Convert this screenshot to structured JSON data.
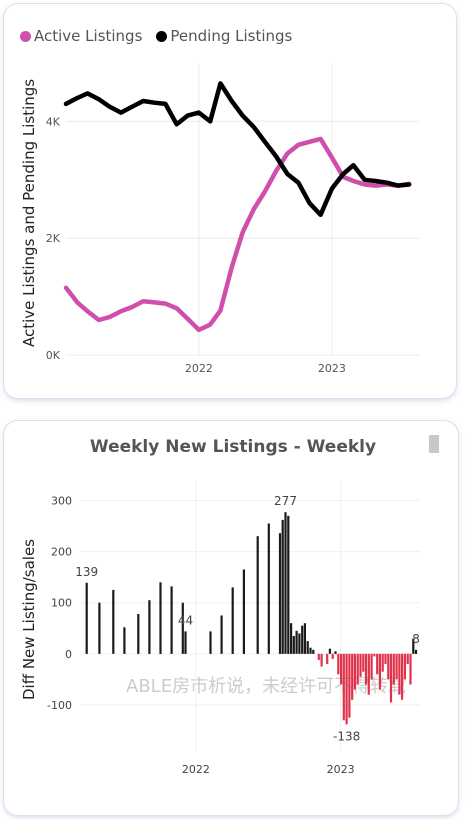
{
  "chart_data": [
    {
      "type": "line",
      "legend_position": "top-left",
      "ylabel": "Active Listings and Pending Listings",
      "xlabel": "",
      "y_ticks": [
        "0K",
        "2K",
        "4K"
      ],
      "y_tick_values": [
        0,
        2000,
        4000
      ],
      "x_ticks": [
        "2022",
        "2023"
      ],
      "x_tick_values": [
        "2022-01-01",
        "2023-01-01"
      ],
      "ylim": [
        0,
        5000
      ],
      "xlim": [
        "2021-01-01",
        "2023-08-31"
      ],
      "grid": true,
      "series": [
        {
          "name": "Active Listings",
          "color": "#d04fad",
          "x": [
            "2021-01-01",
            "2021-02-01",
            "2021-03-01",
            "2021-04-01",
            "2021-05-01",
            "2021-06-01",
            "2021-07-01",
            "2021-08-01",
            "2021-09-01",
            "2021-10-01",
            "2021-11-01",
            "2021-12-01",
            "2022-01-01",
            "2022-02-01",
            "2022-03-01",
            "2022-04-01",
            "2022-05-01",
            "2022-06-01",
            "2022-07-01",
            "2022-08-01",
            "2022-09-01",
            "2022-10-01",
            "2022-11-01",
            "2022-12-01",
            "2023-01-01",
            "2023-02-01",
            "2023-03-01",
            "2023-04-01",
            "2023-05-01",
            "2023-06-01",
            "2023-07-01",
            "2023-08-01"
          ],
          "values": [
            1150,
            900,
            750,
            600,
            650,
            750,
            820,
            920,
            900,
            880,
            800,
            620,
            430,
            520,
            760,
            1500,
            2100,
            2500,
            2800,
            3150,
            3450,
            3600,
            3650,
            3700,
            3380,
            3050,
            2980,
            2920,
            2900,
            2920,
            2900,
            2930
          ]
        },
        {
          "name": "Pending Listings",
          "color": "#000000",
          "x": [
            "2021-01-01",
            "2021-02-01",
            "2021-03-01",
            "2021-04-01",
            "2021-05-01",
            "2021-06-01",
            "2021-07-01",
            "2021-08-01",
            "2021-09-01",
            "2021-10-01",
            "2021-11-01",
            "2021-12-01",
            "2022-01-01",
            "2022-02-01",
            "2022-03-01",
            "2022-04-01",
            "2022-05-01",
            "2022-06-01",
            "2022-07-01",
            "2022-08-01",
            "2022-09-01",
            "2022-10-01",
            "2022-11-01",
            "2022-12-01",
            "2023-01-01",
            "2023-02-01",
            "2023-03-01",
            "2023-04-01",
            "2023-05-01",
            "2023-06-01",
            "2023-07-01",
            "2023-08-01"
          ],
          "values": [
            4300,
            4400,
            4480,
            4380,
            4250,
            4150,
            4250,
            4350,
            4320,
            4300,
            3950,
            4100,
            4150,
            4000,
            4650,
            4350,
            4100,
            3900,
            3650,
            3400,
            3100,
            2950,
            2600,
            2400,
            2850,
            3100,
            3250,
            3000,
            2980,
            2950,
            2900,
            2920
          ]
        }
      ]
    },
    {
      "type": "bar",
      "title": "Weekly New Listings - Weekly",
      "ylabel": "Diff New Listing/sales",
      "xlabel": "",
      "y_ticks": [
        "300",
        "200",
        "100",
        "0",
        "-100"
      ],
      "y_tick_values": [
        300,
        200,
        100,
        0,
        -100
      ],
      "x_ticks": [
        "2022",
        "2023"
      ],
      "x_tick_values": [
        "2022-01-01",
        "2023-01-01"
      ],
      "ylim": [
        -190,
        340
      ],
      "xlim": [
        "2021-03-15",
        "2023-07-20"
      ],
      "grid": true,
      "positive_color": "#1a1a1a",
      "negative_color": "#e0334b",
      "data_labels": [
        {
          "x": "2021-04-01",
          "value": 139,
          "text": "139"
        },
        {
          "x": "2021-12-06",
          "value": 44,
          "text": "44"
        },
        {
          "x": "2022-08-15",
          "value": 277,
          "text": "277"
        },
        {
          "x": "2023-01-16",
          "value": -138,
          "text": "-138"
        },
        {
          "x": "2023-07-10",
          "value": 8,
          "text": "8"
        }
      ],
      "x": [
        "2021-04-01",
        "2021-05-03",
        "2021-06-07",
        "2021-07-05",
        "2021-08-09",
        "2021-09-06",
        "2021-10-04",
        "2021-11-01",
        "2021-11-29",
        "2021-12-06",
        "2022-02-07",
        "2022-03-07",
        "2022-04-04",
        "2022-05-02",
        "2022-06-06",
        "2022-07-04",
        "2022-08-01",
        "2022-08-08",
        "2022-08-15",
        "2022-08-22",
        "2022-08-29",
        "2022-09-05",
        "2022-09-12",
        "2022-09-19",
        "2022-09-26",
        "2022-10-03",
        "2022-10-10",
        "2022-10-17",
        "2022-10-24",
        "2022-10-31",
        "2022-11-07",
        "2022-11-14",
        "2022-11-28",
        "2022-12-05",
        "2022-12-12",
        "2022-12-19",
        "2022-12-26",
        "2023-01-02",
        "2023-01-09",
        "2023-01-16",
        "2023-01-23",
        "2023-01-30",
        "2023-02-06",
        "2023-02-13",
        "2023-02-20",
        "2023-02-27",
        "2023-03-06",
        "2023-03-13",
        "2023-03-20",
        "2023-03-27",
        "2023-04-03",
        "2023-04-10",
        "2023-04-17",
        "2023-04-24",
        "2023-05-01",
        "2023-05-08",
        "2023-05-15",
        "2023-05-22",
        "2023-05-29",
        "2023-06-05",
        "2023-06-12",
        "2023-06-19",
        "2023-06-26",
        "2023-07-03",
        "2023-07-10"
      ],
      "values": [
        139,
        100,
        125,
        52,
        78,
        105,
        140,
        132,
        100,
        44,
        44,
        75,
        130,
        165,
        230,
        255,
        236,
        262,
        277,
        270,
        60,
        35,
        45,
        40,
        55,
        60,
        25,
        12,
        8,
        0,
        -12,
        -25,
        -20,
        10,
        -10,
        5,
        -40,
        -60,
        -130,
        -138,
        -125,
        -90,
        -70,
        -60,
        -45,
        -35,
        -60,
        -80,
        -50,
        -5,
        -40,
        -70,
        -35,
        -20,
        -50,
        -95,
        -60,
        -50,
        -80,
        -90,
        -50,
        -20,
        -60,
        30,
        8
      ]
    }
  ]
}
